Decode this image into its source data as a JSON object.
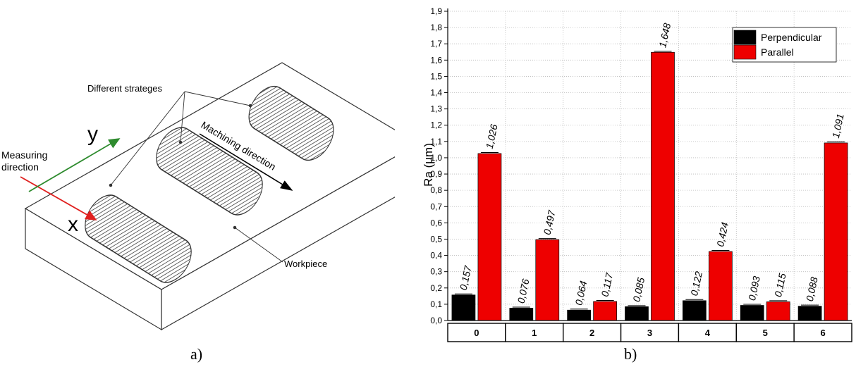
{
  "panel_a": {
    "label": "a)",
    "callouts": {
      "strategies": "Different strateges",
      "machining": "Machining direction",
      "measuring": "Measuring\ndirection",
      "workpiece": "Workpiece"
    },
    "axes": {
      "x": "x",
      "y": "y"
    },
    "colors": {
      "x_arrow": "#e0201f",
      "y_arrow": "#2e8b2e"
    }
  },
  "panel_b": {
    "label": "b)"
  },
  "chart_data": {
    "type": "bar",
    "categories": [
      "0",
      "1",
      "2",
      "3",
      "4",
      "5",
      "6"
    ],
    "series": [
      {
        "name": "Perpendicular",
        "color": "#000000",
        "values": [
          0.157,
          0.076,
          0.064,
          0.085,
          0.122,
          0.093,
          0.088
        ],
        "labels": [
          "0,157",
          "0,076",
          "0,064",
          "0,085",
          "0,122",
          "0,093",
          "0,088"
        ]
      },
      {
        "name": "Parallel",
        "color": "#ee0000",
        "values": [
          1.026,
          0.497,
          0.117,
          1.648,
          0.424,
          0.115,
          1.091
        ],
        "labels": [
          "1,026",
          "0,497",
          "0,117",
          "1,648",
          "0,424",
          "0,115",
          "1,091"
        ]
      }
    ],
    "ylabel": "Ra (µm)",
    "ylim": [
      0,
      1.9
    ],
    "yticks": [
      "0,0",
      "0,1",
      "0,2",
      "0,3",
      "0,4",
      "0,5",
      "0,6",
      "0,7",
      "0,8",
      "0,9",
      "1,0",
      "1,1",
      "1,2",
      "1,3",
      "1,4",
      "1,5",
      "1,6",
      "1,7",
      "1,8",
      "1,9"
    ],
    "grid": true,
    "legend": "top-right"
  }
}
